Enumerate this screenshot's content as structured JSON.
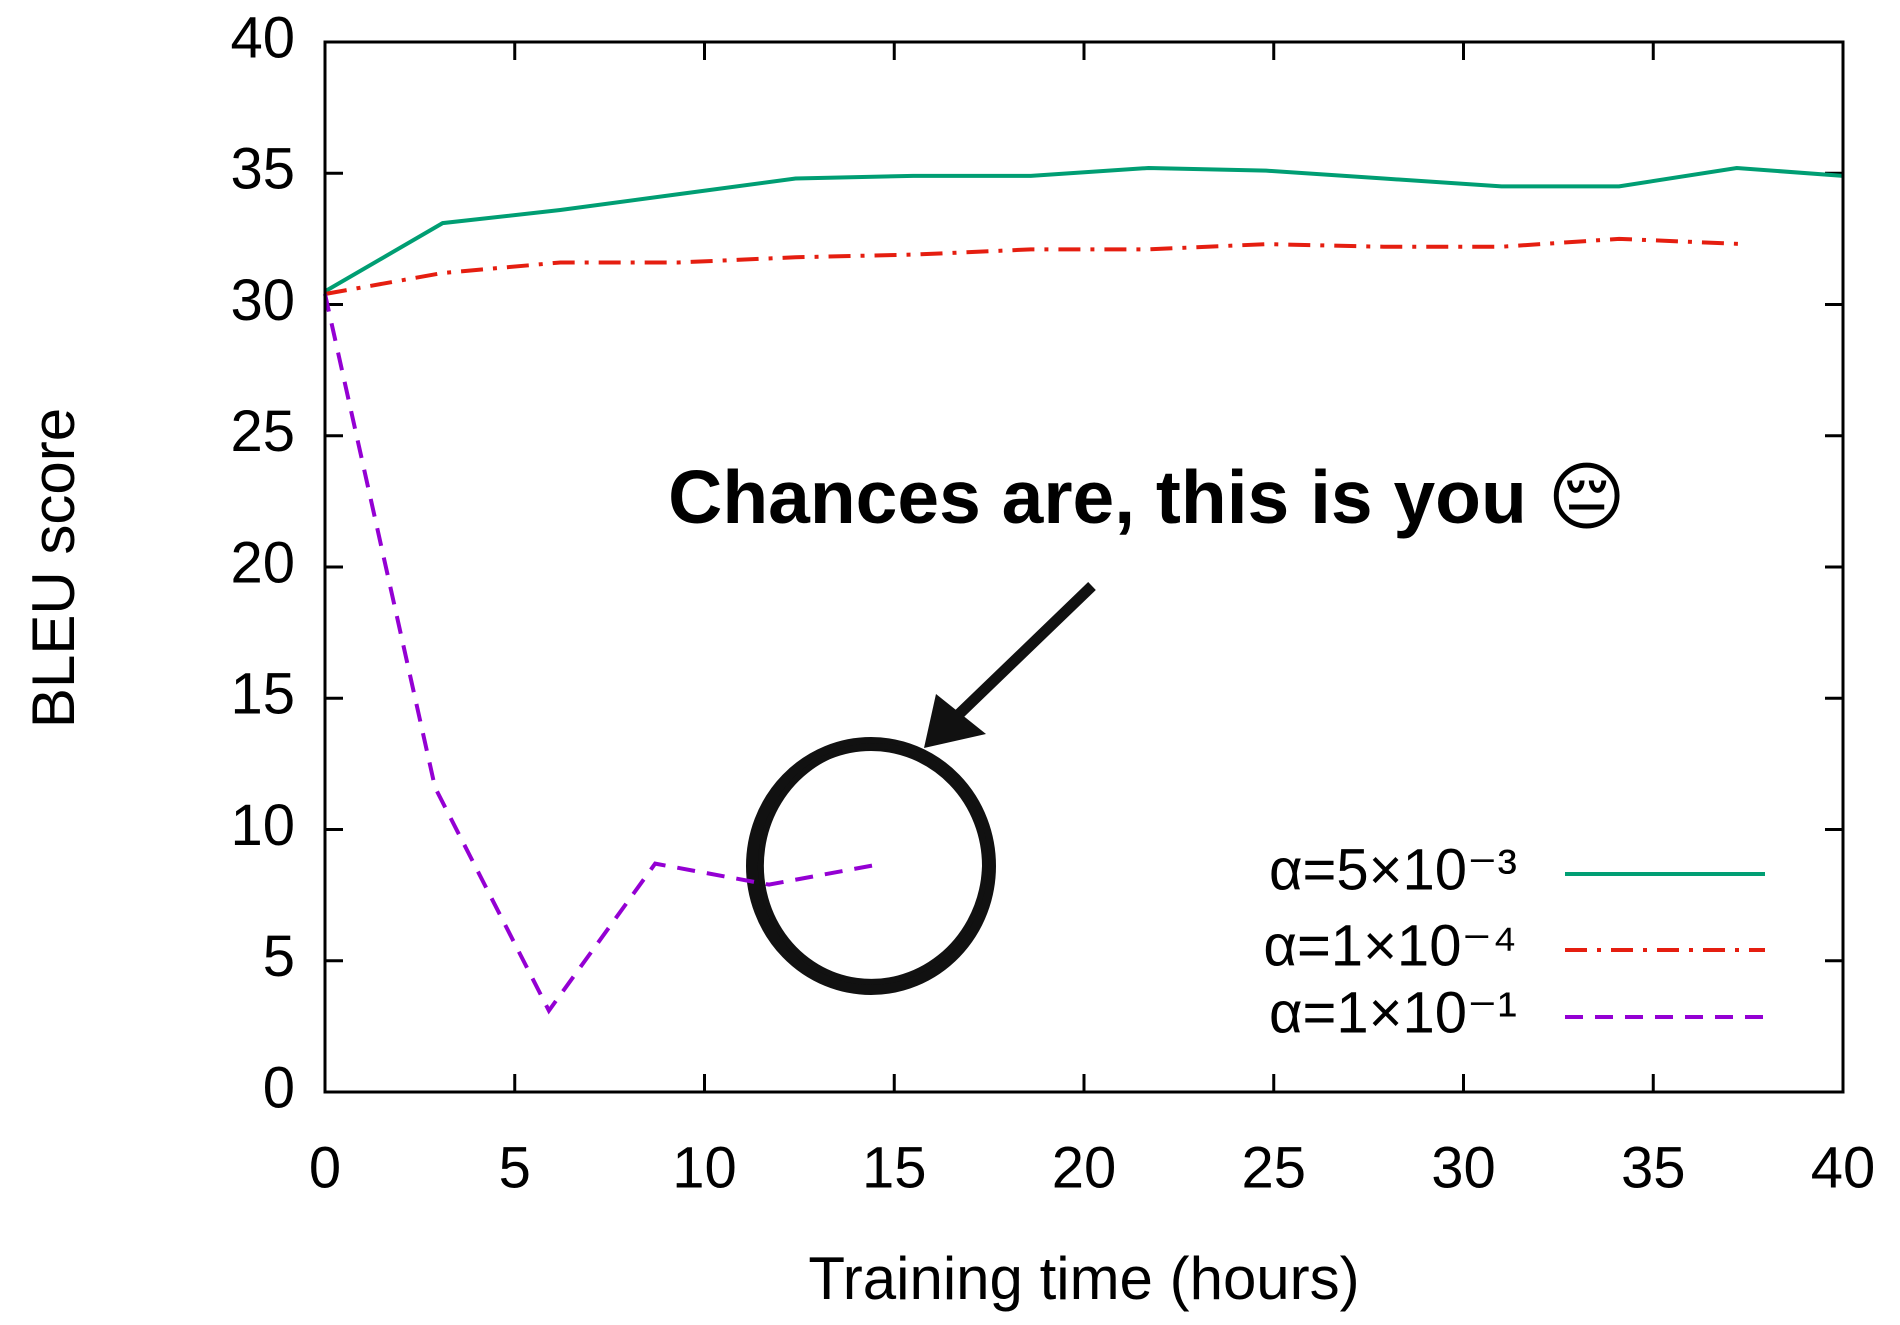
{
  "chart_data": {
    "type": "line",
    "x_label": "Training time (hours)",
    "y_label": "BLEU score",
    "annotation": "Chances are, this is you 😔",
    "xlim": [
      0,
      40
    ],
    "xticks": [
      0,
      5,
      10,
      15,
      20,
      25,
      30,
      35,
      40
    ],
    "ylim": [
      0,
      40
    ],
    "yticks": [
      0,
      5,
      10,
      15,
      20,
      25,
      30,
      35,
      40
    ],
    "legend": "bottom right",
    "series": [
      {
        "name": "α=5×10⁻³",
        "color": "#009e73",
        "dash": "none",
        "x": [
          0,
          3.1,
          6.2,
          9.3,
          12.4,
          15.5,
          18.6,
          21.7,
          24.8,
          27.9,
          31,
          34.1,
          37.2,
          40
        ],
        "values": [
          30.5,
          33.1,
          33.6,
          34.2,
          34.8,
          34.9,
          34.9,
          35.2,
          35.1,
          34.8,
          34.5,
          34.5,
          35.2,
          34.9
        ]
      },
      {
        "name": "α=1×10⁻⁴",
        "color": "#e51e10",
        "dash": "dashdot",
        "x": [
          0,
          3.1,
          6.2,
          9.3,
          12.4,
          15.5,
          18.6,
          21.7,
          24.8,
          27.9,
          31,
          34.1,
          37.4
        ],
        "values": [
          30.4,
          31.2,
          31.6,
          31.6,
          31.8,
          31.9,
          32.1,
          32.1,
          32.3,
          32.2,
          32.2,
          32.5,
          32.3
        ]
      },
      {
        "name": "α=1×10⁻¹",
        "color": "#9400d3",
        "dash": "dashed",
        "x": [
          0,
          2.9,
          5.9,
          8.7,
          11.7,
          14.7
        ],
        "values": [
          30.4,
          11.6,
          3.1,
          8.7,
          7.9,
          8.7
        ]
      }
    ]
  }
}
